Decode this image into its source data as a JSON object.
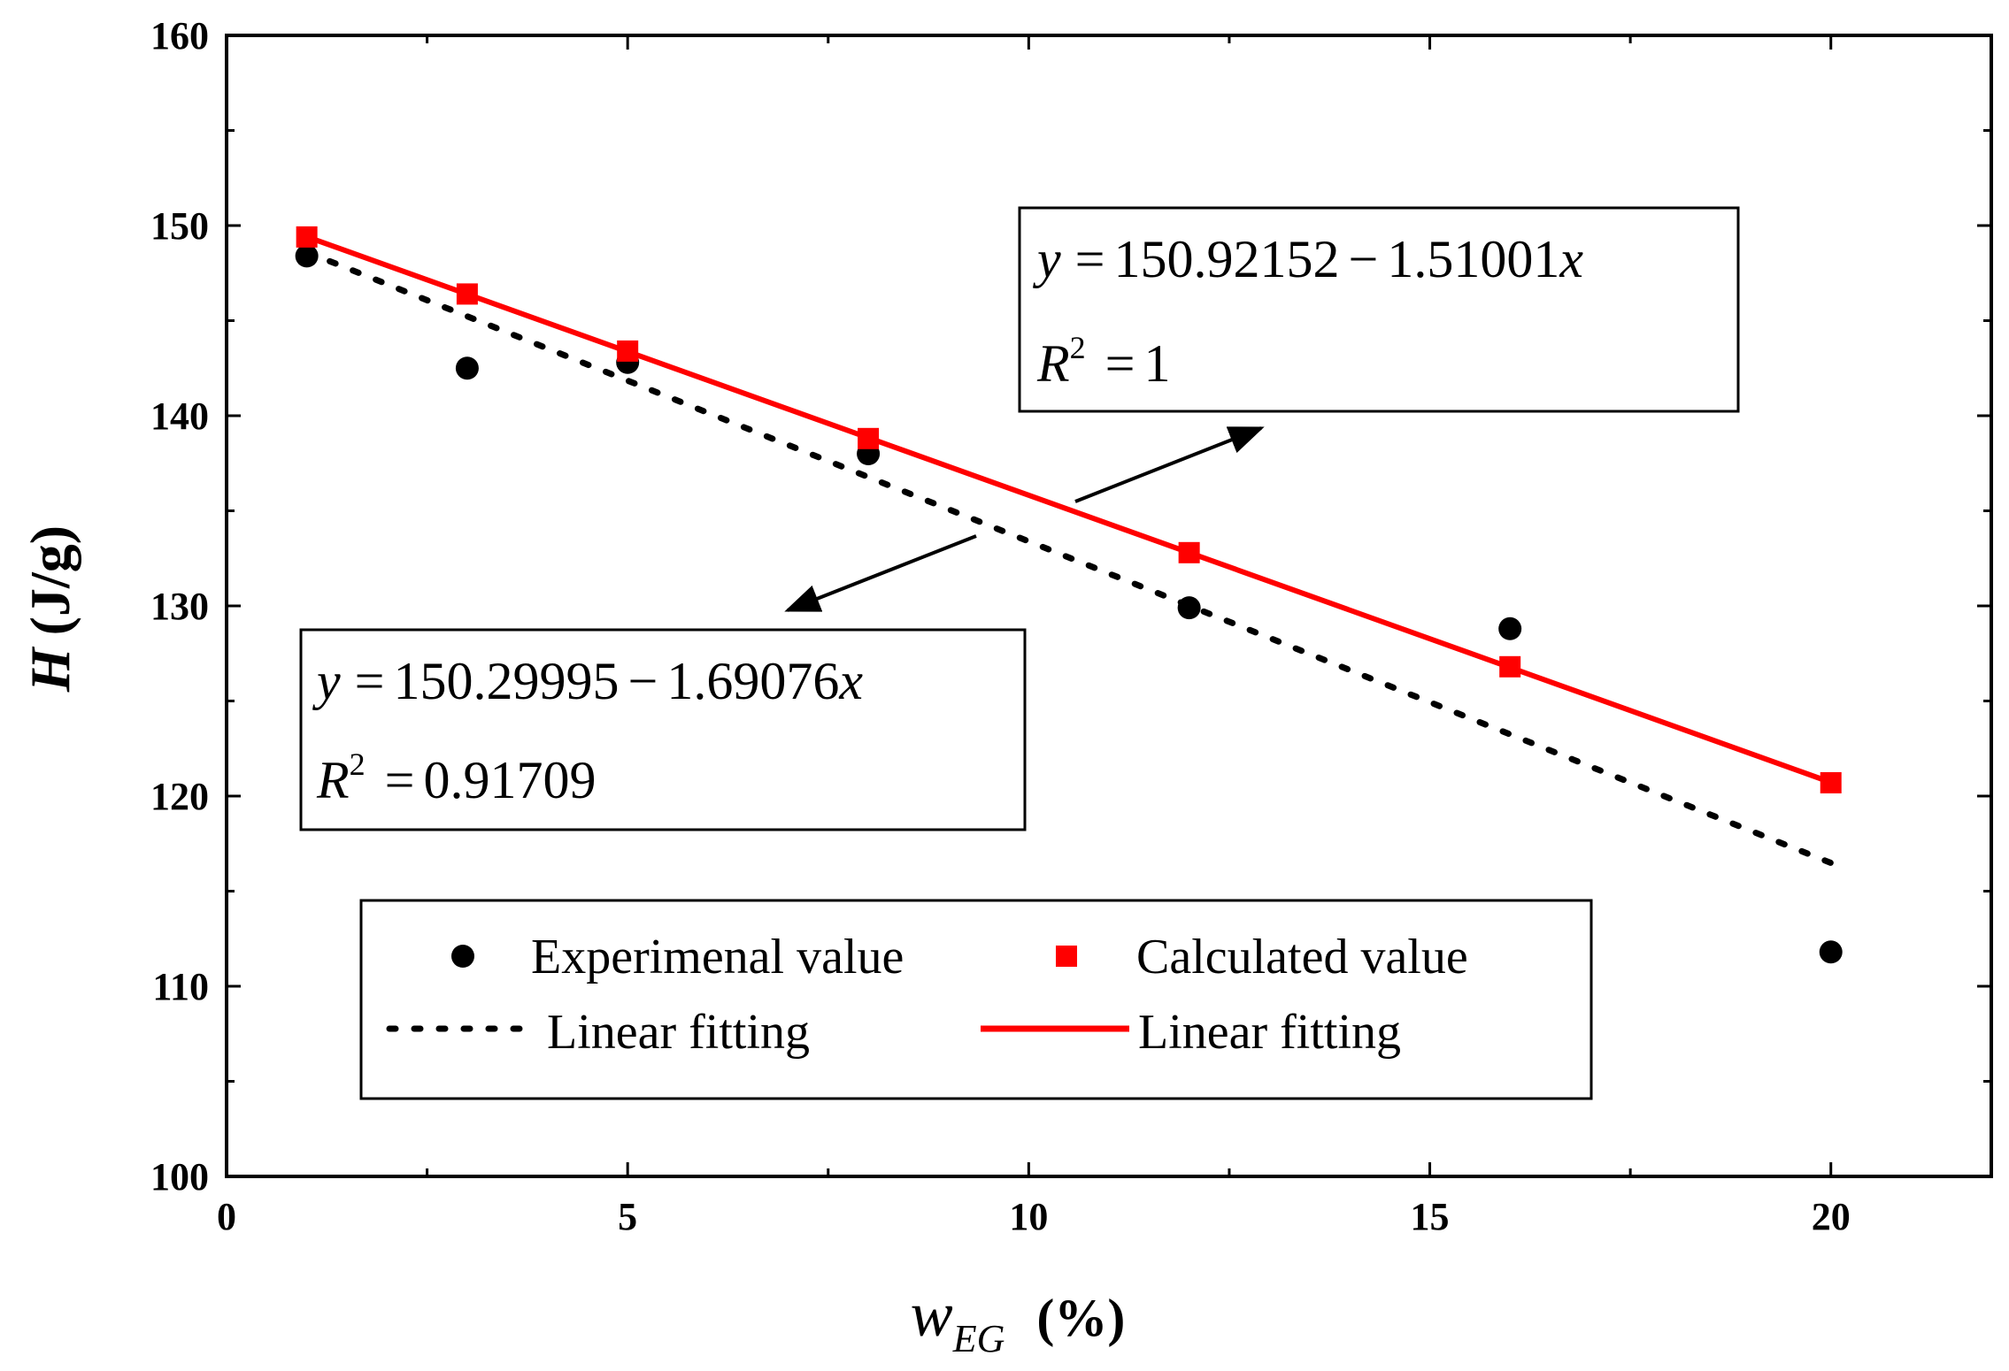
{
  "chart_data": {
    "type": "scatter",
    "title": "",
    "xlabel": {
      "symbol": "w",
      "subscript": "EG",
      "unit": "(%)"
    },
    "ylabel": {
      "symbol": "H",
      "unit": "(J/g)"
    },
    "xlim": [
      0,
      22
    ],
    "ylim": [
      100,
      160
    ],
    "xticks": [
      0,
      5,
      10,
      15,
      20
    ],
    "yticks": [
      100,
      110,
      120,
      130,
      140,
      150,
      160
    ],
    "grid": false,
    "series": [
      {
        "name": "Experimenal value",
        "marker": "circle",
        "color": "#000000",
        "x": [
          1,
          3,
          5,
          8,
          12,
          16,
          20
        ],
        "y": [
          148.4,
          142.5,
          142.8,
          138.0,
          129.9,
          128.8,
          111.8
        ]
      },
      {
        "name": "Calculated value",
        "marker": "square",
        "color": "#ff0000",
        "x": [
          1,
          3,
          5,
          8,
          12,
          16,
          20
        ],
        "y": [
          149.4,
          146.4,
          143.4,
          138.8,
          132.8,
          126.8,
          120.7
        ]
      }
    ],
    "fits": [
      {
        "name": "Linear fitting",
        "style": "dotted",
        "color": "#000000",
        "intercept": 150.29995,
        "slope": -1.69076,
        "xrange": [
          1,
          20
        ],
        "equation": {
          "var": "y",
          "eq": "=",
          "rhs": "150.29995",
          "op": "−",
          "coef": "1.69076",
          "x": "x"
        },
        "r2": {
          "var": "R",
          "sup": "2",
          "eq": "=",
          "value": "0.91709"
        }
      },
      {
        "name": "Linear fitting",
        "style": "solid",
        "color": "#ff0000",
        "intercept": 150.92152,
        "slope": -1.51001,
        "xrange": [
          1,
          20
        ],
        "equation": {
          "var": "y",
          "eq": "=",
          "rhs": "150.92152",
          "op": "−",
          "coef": "1.51001",
          "x": "x"
        },
        "r2": {
          "var": "R",
          "sup": "2",
          "eq": "=",
          "value": "1"
        }
      }
    ],
    "legend": {
      "position": "bottom-center",
      "entries": [
        "Experimenal value",
        "Calculated value",
        "Linear fitting",
        "Linear fitting"
      ]
    }
  }
}
